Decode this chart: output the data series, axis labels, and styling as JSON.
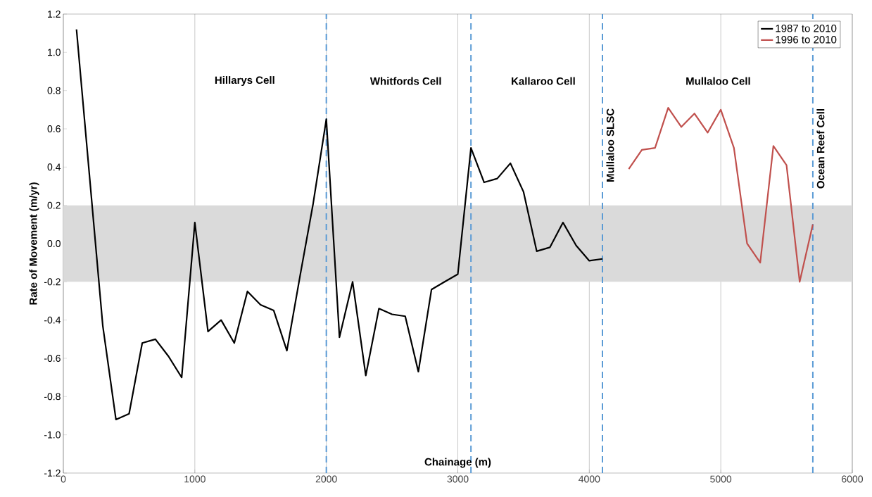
{
  "chart_data": {
    "type": "line",
    "xlabel": "Chainage (m)",
    "ylabel": "Rate of Movement (m/yr)",
    "xlim": [
      0,
      6000
    ],
    "xticks": [
      0,
      1000,
      2000,
      3000,
      4000,
      5000,
      6000
    ],
    "ylim": [
      -1.2,
      1.2
    ],
    "yticks": [
      -1.2,
      {
        "value": -1.0,
        "label": "-1.0"
      },
      -0.8,
      -0.6,
      -0.4,
      -0.2,
      {
        "value": 0,
        "label": "0.0"
      },
      0.2,
      0.4,
      0.6,
      0.8,
      {
        "value": 1.0,
        "label": "1.0"
      },
      1.2
    ],
    "grid": "x",
    "legend": "top right",
    "marker": "none",
    "line_style": "solid",
    "series": [
      {
        "name": "1987 to 2010",
        "color": "#000000",
        "x": [
          100,
          300,
          400,
          500,
          600,
          700,
          800,
          900,
          1000,
          1100,
          1200,
          1300,
          1400,
          1500,
          1600,
          1700,
          1800,
          1900,
          2000,
          2100,
          2200,
          2300,
          2400,
          2500,
          2600,
          2700,
          2800,
          2900,
          3000,
          3100,
          3200,
          3300,
          3400,
          3500,
          3600,
          3700,
          3800,
          3900,
          4000,
          4100
        ],
        "values": [
          1.12,
          -0.43,
          -0.92,
          -0.89,
          -0.52,
          -0.5,
          -0.59,
          -0.7,
          0.11,
          -0.46,
          -0.4,
          -0.52,
          -0.25,
          -0.32,
          -0.35,
          -0.56,
          -0.17,
          0.21,
          0.65,
          -0.49,
          -0.2,
          -0.69,
          -0.34,
          -0.37,
          -0.38,
          -0.67,
          -0.24,
          -0.2,
          -0.16,
          0.5,
          0.32,
          0.34,
          0.42,
          0.27,
          -0.04,
          -0.02,
          0.11,
          -0.01,
          -0.09,
          -0.08
        ]
      },
      {
        "name": "1996 to 2010",
        "color": "#c0504d",
        "x": [
          4300,
          4400,
          4500,
          4600,
          4700,
          4800,
          4900,
          5000,
          5100,
          5200,
          5300,
          5400,
          5500,
          5600,
          5700
        ],
        "values": [
          0.39,
          0.49,
          0.5,
          0.71,
          0.61,
          0.68,
          0.58,
          0.7,
          0.5,
          0.0,
          -0.1,
          0.51,
          0.41,
          -0.2,
          0.1
        ]
      }
    ],
    "ref_lines": [
      {
        "axis": "x",
        "value": 2000,
        "color": "#5b9bd5",
        "line_style": "dashed"
      },
      {
        "axis": "x",
        "value": 3100,
        "color": "#5b9bd5",
        "line_style": "dashed"
      },
      {
        "axis": "x",
        "value": 4100,
        "color": "#5b9bd5",
        "line_style": "dashed",
        "label": "Mullaloo SLSC"
      },
      {
        "axis": "x",
        "value": 5700,
        "color": "#5b9bd5",
        "line_style": "dashed",
        "label": "Ocean Reef Cell"
      }
    ],
    "bands": [
      {
        "axis": "y",
        "from": -0.2,
        "to": 0.2,
        "color": "#dadada"
      }
    ],
    "annotations": [
      "Hillarys Cell",
      "Whitfords Cell",
      "Kallaroo Cell",
      "Mullaloo Cell"
    ]
  }
}
